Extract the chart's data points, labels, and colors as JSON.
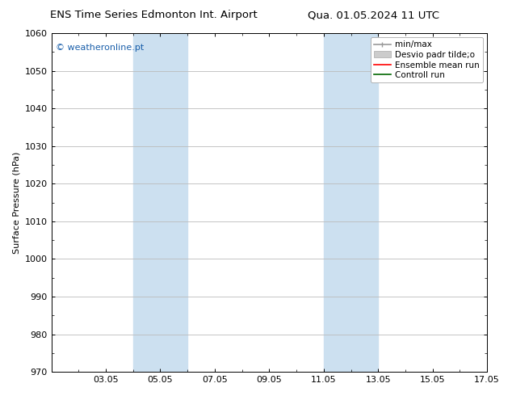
{
  "title_left": "ENS Time Series Edmonton Int. Airport",
  "title_right": "Qua. 01.05.2024 11 UTC",
  "ylabel": "Surface Pressure (hPa)",
  "ylim": [
    970,
    1060
  ],
  "yticks": [
    970,
    980,
    990,
    1000,
    1010,
    1020,
    1030,
    1040,
    1050,
    1060
  ],
  "xlim": [
    1.0,
    17.0
  ],
  "xtick_labels": [
    "03.05",
    "05.05",
    "07.05",
    "09.05",
    "11.05",
    "13.05",
    "15.05",
    "17.05"
  ],
  "xtick_positions": [
    3,
    5,
    7,
    9,
    11,
    13,
    15,
    17
  ],
  "shaded_bands": [
    {
      "x_start": 4.0,
      "x_end": 6.0,
      "color": "#cce0f0"
    },
    {
      "x_start": 11.0,
      "x_end": 13.0,
      "color": "#cce0f0"
    }
  ],
  "watermark_text": "© weatheronline.pt",
  "watermark_color": "#1a5faa",
  "background_color": "#ffffff",
  "plot_bg_color": "#ffffff",
  "grid_color": "#bbbbbb",
  "title_fontsize": 9.5,
  "tick_fontsize": 8,
  "ylabel_fontsize": 8,
  "legend_fontsize": 7.5,
  "watermark_fontsize": 8
}
